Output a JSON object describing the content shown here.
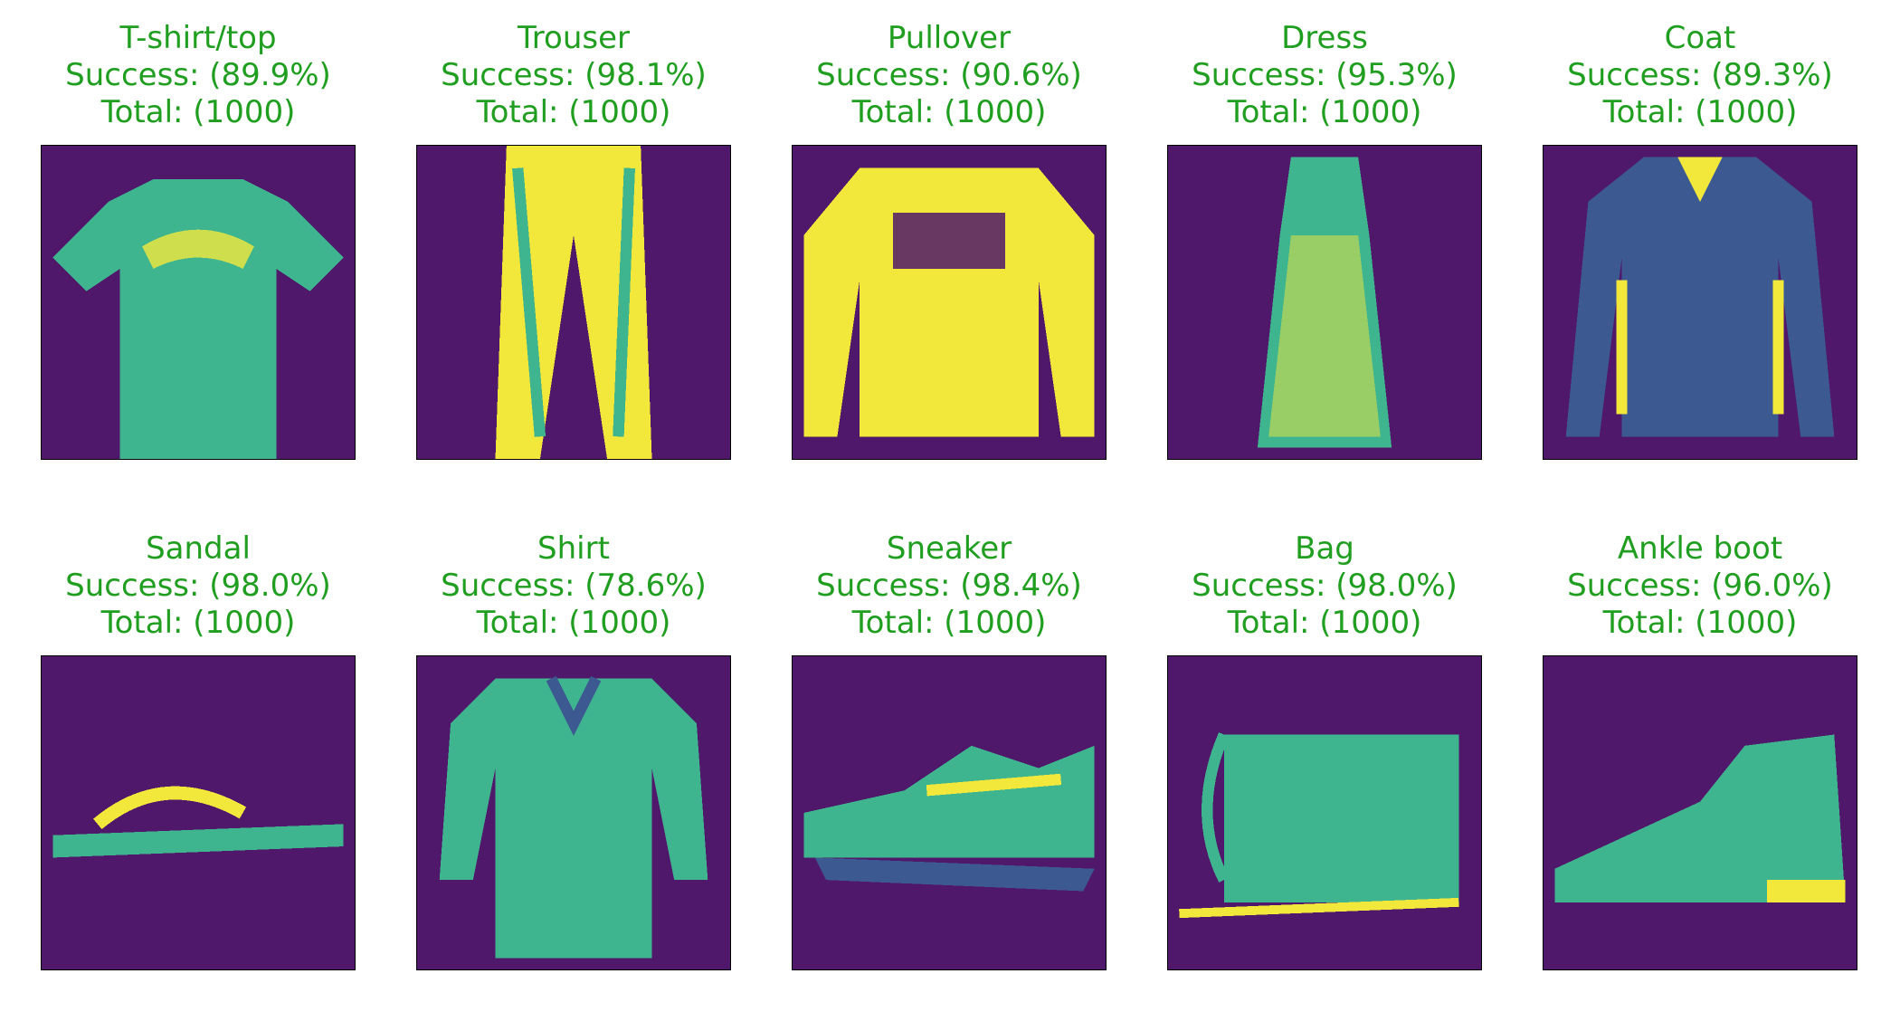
{
  "colors": {
    "caption": "#1f9e1f",
    "background": "#50186a",
    "bright": "#f2e83b",
    "mid": "#3fb58f",
    "dim": "#3c5a91"
  },
  "success_label": "Success:",
  "total_label": "Total:",
  "classes": [
    {
      "name": "T-shirt/top",
      "success": "(89.9%)",
      "total": "(1000)",
      "glyph": "tshirt"
    },
    {
      "name": "Trouser",
      "success": "(98.1%)",
      "total": "(1000)",
      "glyph": "trouser"
    },
    {
      "name": "Pullover",
      "success": "(90.6%)",
      "total": "(1000)",
      "glyph": "pullover"
    },
    {
      "name": "Dress",
      "success": "(95.3%)",
      "total": "(1000)",
      "glyph": "dress"
    },
    {
      "name": "Coat",
      "success": "(89.3%)",
      "total": "(1000)",
      "glyph": "coat"
    },
    {
      "name": "Sandal",
      "success": "(98.0%)",
      "total": "(1000)",
      "glyph": "sandal"
    },
    {
      "name": "Shirt",
      "success": "(78.6%)",
      "total": "(1000)",
      "glyph": "shirt"
    },
    {
      "name": "Sneaker",
      "success": "(98.4%)",
      "total": "(1000)",
      "glyph": "sneaker"
    },
    {
      "name": "Bag",
      "success": "(98.0%)",
      "total": "(1000)",
      "glyph": "bag"
    },
    {
      "name": "Ankle boot",
      "success": "(96.0%)",
      "total": "(1000)",
      "glyph": "boot"
    }
  ]
}
